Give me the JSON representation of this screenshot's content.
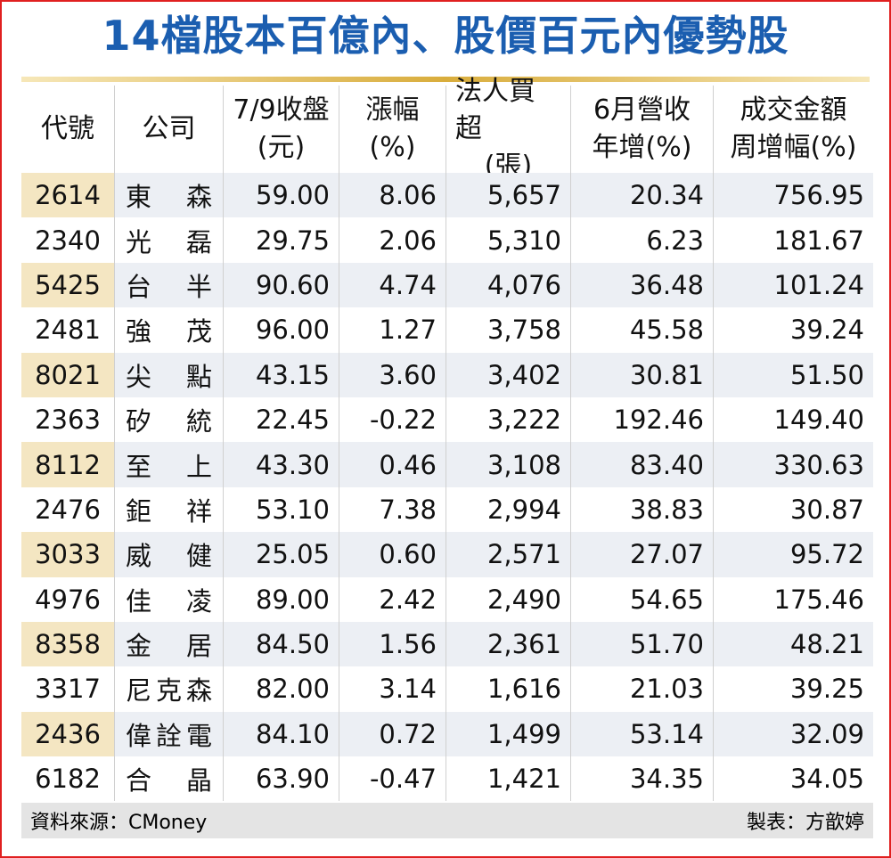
{
  "title": "14檔股本百億內、股價百元內優勢股",
  "table": {
    "headers": [
      [
        "代號"
      ],
      [
        "公司"
      ],
      [
        "7/9收盤",
        "(元)"
      ],
      [
        "漲幅",
        "(%)"
      ],
      [
        "法人買超",
        "(張)"
      ],
      [
        "6月營收",
        "年增(%)"
      ],
      [
        "成交金額",
        "周增幅(%)"
      ]
    ],
    "rows": [
      [
        "2614",
        "東森",
        "59.00",
        "8.06",
        "5,657",
        "20.34",
        "756.95"
      ],
      [
        "2340",
        "光磊",
        "29.75",
        "2.06",
        "5,310",
        "6.23",
        "181.67"
      ],
      [
        "5425",
        "台半",
        "90.60",
        "4.74",
        "4,076",
        "36.48",
        "101.24"
      ],
      [
        "2481",
        "強茂",
        "96.00",
        "1.27",
        "3,758",
        "45.58",
        "39.24"
      ],
      [
        "8021",
        "尖點",
        "43.15",
        "3.60",
        "3,402",
        "30.81",
        "51.50"
      ],
      [
        "2363",
        "矽統",
        "22.45",
        "-0.22",
        "3,222",
        "192.46",
        "149.40"
      ],
      [
        "8112",
        "至上",
        "43.30",
        "0.46",
        "3,108",
        "83.40",
        "330.63"
      ],
      [
        "2476",
        "鉅祥",
        "53.10",
        "7.38",
        "2,994",
        "38.83",
        "30.87"
      ],
      [
        "3033",
        "威健",
        "25.05",
        "0.60",
        "2,571",
        "27.07",
        "95.72"
      ],
      [
        "4976",
        "佳凌",
        "89.00",
        "2.42",
        "2,490",
        "54.65",
        "175.46"
      ],
      [
        "8358",
        "金居",
        "84.50",
        "1.56",
        "2,361",
        "51.70",
        "48.21"
      ],
      [
        "3317",
        "尼克森",
        "82.00",
        "3.14",
        "1,616",
        "21.03",
        "39.25"
      ],
      [
        "2436",
        "偉詮電",
        "84.10",
        "0.72",
        "1,499",
        "53.14",
        "32.09"
      ],
      [
        "6182",
        "合晶",
        "63.90",
        "-0.47",
        "1,421",
        "34.35",
        "34.05"
      ]
    ]
  },
  "footer": {
    "source": "資料來源：CMoney",
    "author": "製表：方歆婷"
  }
}
